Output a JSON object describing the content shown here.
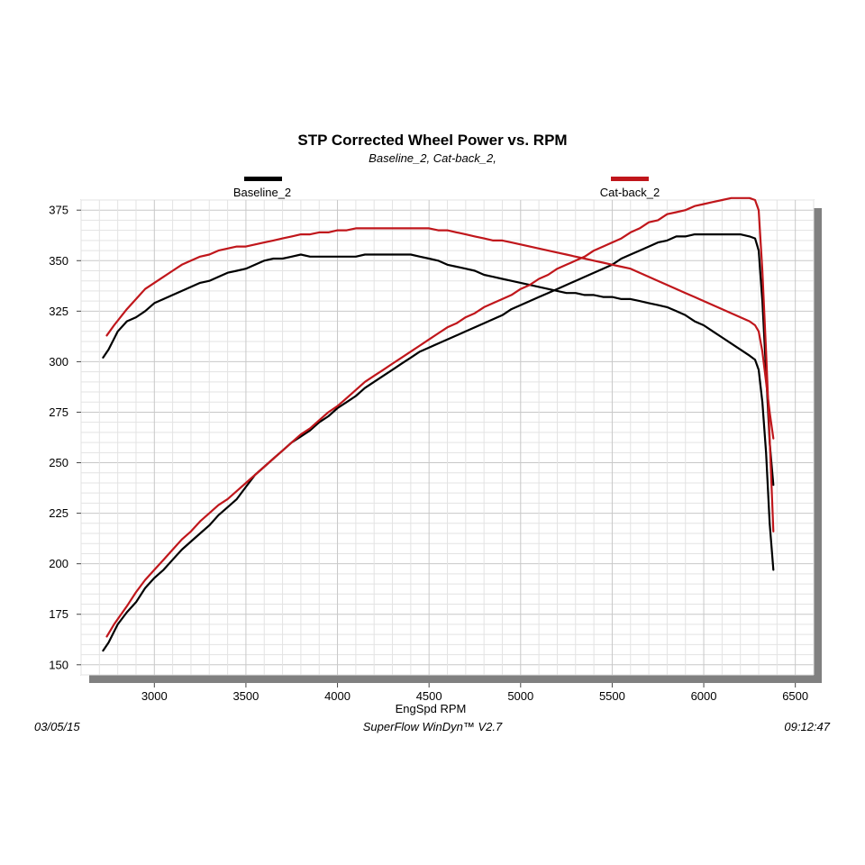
{
  "chart_data": {
    "type": "line",
    "title": "STP Corrected Wheel Power vs. RPM",
    "subtitle": "Baseline_2, Cat-back_2,",
    "xlabel": "EngSpd RPM",
    "ylabel": "",
    "xlim": [
      2600,
      6600
    ],
    "ylim": [
      145,
      380
    ],
    "x_ticks": [
      3000,
      3500,
      4000,
      4500,
      5000,
      5500,
      6000,
      6500
    ],
    "y_ticks": [
      150,
      175,
      200,
      225,
      250,
      275,
      300,
      325,
      350,
      375
    ],
    "grid": true,
    "legend_position": "top",
    "series": [
      {
        "name": "Baseline_2",
        "color": "#000000",
        "kind": "hp",
        "points": [
          [
            2720,
            157
          ],
          [
            2750,
            161
          ],
          [
            2800,
            170
          ],
          [
            2850,
            176
          ],
          [
            2900,
            181
          ],
          [
            2950,
            188
          ],
          [
            3000,
            193
          ],
          [
            3050,
            197
          ],
          [
            3100,
            202
          ],
          [
            3150,
            207
          ],
          [
            3200,
            211
          ],
          [
            3250,
            215
          ],
          [
            3300,
            219
          ],
          [
            3350,
            224
          ],
          [
            3400,
            228
          ],
          [
            3450,
            232
          ],
          [
            3500,
            238
          ],
          [
            3550,
            244
          ],
          [
            3600,
            248
          ],
          [
            3650,
            252
          ],
          [
            3700,
            256
          ],
          [
            3750,
            260
          ],
          [
            3800,
            263
          ],
          [
            3850,
            266
          ],
          [
            3900,
            270
          ],
          [
            3950,
            273
          ],
          [
            4000,
            277
          ],
          [
            4050,
            280
          ],
          [
            4100,
            283
          ],
          [
            4150,
            287
          ],
          [
            4200,
            290
          ],
          [
            4250,
            293
          ],
          [
            4300,
            296
          ],
          [
            4350,
            299
          ],
          [
            4400,
            302
          ],
          [
            4450,
            305
          ],
          [
            4500,
            307
          ],
          [
            4550,
            309
          ],
          [
            4600,
            311
          ],
          [
            4650,
            313
          ],
          [
            4700,
            315
          ],
          [
            4750,
            317
          ],
          [
            4800,
            319
          ],
          [
            4850,
            321
          ],
          [
            4900,
            323
          ],
          [
            4950,
            326
          ],
          [
            5000,
            328
          ],
          [
            5050,
            330
          ],
          [
            5100,
            332
          ],
          [
            5150,
            334
          ],
          [
            5200,
            336
          ],
          [
            5250,
            338
          ],
          [
            5300,
            340
          ],
          [
            5350,
            342
          ],
          [
            5400,
            344
          ],
          [
            5450,
            346
          ],
          [
            5500,
            348
          ],
          [
            5550,
            351
          ],
          [
            5600,
            353
          ],
          [
            5650,
            355
          ],
          [
            5700,
            357
          ],
          [
            5750,
            359
          ],
          [
            5800,
            360
          ],
          [
            5850,
            362
          ],
          [
            5900,
            362
          ],
          [
            5950,
            363
          ],
          [
            6000,
            363
          ],
          [
            6050,
            363
          ],
          [
            6100,
            363
          ],
          [
            6150,
            363
          ],
          [
            6200,
            363
          ],
          [
            6250,
            362
          ],
          [
            6280,
            361
          ],
          [
            6300,
            355
          ],
          [
            6320,
            330
          ],
          [
            6340,
            295
          ],
          [
            6360,
            260
          ],
          [
            6380,
            239
          ]
        ]
      },
      {
        "name": "Baseline_2",
        "color": "#000000",
        "kind": "torque",
        "points": [
          [
            2720,
            302
          ],
          [
            2750,
            306
          ],
          [
            2800,
            315
          ],
          [
            2850,
            320
          ],
          [
            2900,
            322
          ],
          [
            2950,
            325
          ],
          [
            3000,
            329
          ],
          [
            3050,
            331
          ],
          [
            3100,
            333
          ],
          [
            3150,
            335
          ],
          [
            3200,
            337
          ],
          [
            3250,
            339
          ],
          [
            3300,
            340
          ],
          [
            3350,
            342
          ],
          [
            3400,
            344
          ],
          [
            3450,
            345
          ],
          [
            3500,
            346
          ],
          [
            3550,
            348
          ],
          [
            3600,
            350
          ],
          [
            3650,
            351
          ],
          [
            3700,
            351
          ],
          [
            3750,
            352
          ],
          [
            3800,
            353
          ],
          [
            3850,
            352
          ],
          [
            3900,
            352
          ],
          [
            3950,
            352
          ],
          [
            4000,
            352
          ],
          [
            4050,
            352
          ],
          [
            4100,
            352
          ],
          [
            4150,
            353
          ],
          [
            4200,
            353
          ],
          [
            4250,
            353
          ],
          [
            4300,
            353
          ],
          [
            4350,
            353
          ],
          [
            4400,
            353
          ],
          [
            4450,
            352
          ],
          [
            4500,
            351
          ],
          [
            4550,
            350
          ],
          [
            4600,
            348
          ],
          [
            4650,
            347
          ],
          [
            4700,
            346
          ],
          [
            4750,
            345
          ],
          [
            4800,
            343
          ],
          [
            4850,
            342
          ],
          [
            4900,
            341
          ],
          [
            4950,
            340
          ],
          [
            5000,
            339
          ],
          [
            5050,
            338
          ],
          [
            5100,
            337
          ],
          [
            5150,
            336
          ],
          [
            5200,
            335
          ],
          [
            5250,
            334
          ],
          [
            5300,
            334
          ],
          [
            5350,
            333
          ],
          [
            5400,
            333
          ],
          [
            5450,
            332
          ],
          [
            5500,
            332
          ],
          [
            5550,
            331
          ],
          [
            5600,
            331
          ],
          [
            5650,
            330
          ],
          [
            5700,
            329
          ],
          [
            5750,
            328
          ],
          [
            5800,
            327
          ],
          [
            5850,
            325
          ],
          [
            5900,
            323
          ],
          [
            5950,
            320
          ],
          [
            6000,
            318
          ],
          [
            6050,
            315
          ],
          [
            6100,
            312
          ],
          [
            6150,
            309
          ],
          [
            6200,
            306
          ],
          [
            6250,
            303
          ],
          [
            6280,
            301
          ],
          [
            6300,
            296
          ],
          [
            6320,
            280
          ],
          [
            6340,
            255
          ],
          [
            6360,
            220
          ],
          [
            6380,
            197
          ]
        ]
      },
      {
        "name": "Cat-back_2",
        "color": "#c0161b",
        "kind": "hp",
        "points": [
          [
            2740,
            164
          ],
          [
            2780,
            170
          ],
          [
            2850,
            179
          ],
          [
            2900,
            186
          ],
          [
            2950,
            192
          ],
          [
            3000,
            197
          ],
          [
            3050,
            202
          ],
          [
            3100,
            207
          ],
          [
            3150,
            212
          ],
          [
            3200,
            216
          ],
          [
            3250,
            221
          ],
          [
            3300,
            225
          ],
          [
            3350,
            229
          ],
          [
            3400,
            232
          ],
          [
            3450,
            236
          ],
          [
            3500,
            240
          ],
          [
            3550,
            244
          ],
          [
            3600,
            248
          ],
          [
            3650,
            252
          ],
          [
            3700,
            256
          ],
          [
            3750,
            260
          ],
          [
            3800,
            264
          ],
          [
            3850,
            267
          ],
          [
            3900,
            271
          ],
          [
            3950,
            275
          ],
          [
            4000,
            278
          ],
          [
            4050,
            282
          ],
          [
            4100,
            286
          ],
          [
            4150,
            290
          ],
          [
            4200,
            293
          ],
          [
            4250,
            296
          ],
          [
            4300,
            299
          ],
          [
            4350,
            302
          ],
          [
            4400,
            305
          ],
          [
            4450,
            308
          ],
          [
            4500,
            311
          ],
          [
            4550,
            314
          ],
          [
            4600,
            317
          ],
          [
            4650,
            319
          ],
          [
            4700,
            322
          ],
          [
            4750,
            324
          ],
          [
            4800,
            327
          ],
          [
            4850,
            329
          ],
          [
            4900,
            331
          ],
          [
            4950,
            333
          ],
          [
            5000,
            336
          ],
          [
            5050,
            338
          ],
          [
            5100,
            341
          ],
          [
            5150,
            343
          ],
          [
            5200,
            346
          ],
          [
            5250,
            348
          ],
          [
            5300,
            350
          ],
          [
            5350,
            352
          ],
          [
            5400,
            355
          ],
          [
            5450,
            357
          ],
          [
            5500,
            359
          ],
          [
            5550,
            361
          ],
          [
            5600,
            364
          ],
          [
            5650,
            366
          ],
          [
            5700,
            369
          ],
          [
            5750,
            370
          ],
          [
            5800,
            373
          ],
          [
            5850,
            374
          ],
          [
            5900,
            375
          ],
          [
            5950,
            377
          ],
          [
            6000,
            378
          ],
          [
            6050,
            379
          ],
          [
            6100,
            380
          ],
          [
            6150,
            381
          ],
          [
            6200,
            381
          ],
          [
            6250,
            381
          ],
          [
            6280,
            380
          ],
          [
            6300,
            375
          ],
          [
            6320,
            345
          ],
          [
            6340,
            305
          ],
          [
            6360,
            262
          ],
          [
            6380,
            216
          ]
        ]
      },
      {
        "name": "Cat-back_2",
        "color": "#c0161b",
        "kind": "torque",
        "points": [
          [
            2740,
            313
          ],
          [
            2780,
            318
          ],
          [
            2850,
            326
          ],
          [
            2900,
            331
          ],
          [
            2950,
            336
          ],
          [
            3000,
            339
          ],
          [
            3050,
            342
          ],
          [
            3100,
            345
          ],
          [
            3150,
            348
          ],
          [
            3200,
            350
          ],
          [
            3250,
            352
          ],
          [
            3300,
            353
          ],
          [
            3350,
            355
          ],
          [
            3400,
            356
          ],
          [
            3450,
            357
          ],
          [
            3500,
            357
          ],
          [
            3550,
            358
          ],
          [
            3600,
            359
          ],
          [
            3650,
            360
          ],
          [
            3700,
            361
          ],
          [
            3750,
            362
          ],
          [
            3800,
            363
          ],
          [
            3850,
            363
          ],
          [
            3900,
            364
          ],
          [
            3950,
            364
          ],
          [
            4000,
            365
          ],
          [
            4050,
            365
          ],
          [
            4100,
            366
          ],
          [
            4150,
            366
          ],
          [
            4200,
            366
          ],
          [
            4250,
            366
          ],
          [
            4300,
            366
          ],
          [
            4350,
            366
          ],
          [
            4400,
            366
          ],
          [
            4450,
            366
          ],
          [
            4500,
            366
          ],
          [
            4550,
            365
          ],
          [
            4600,
            365
          ],
          [
            4650,
            364
          ],
          [
            4700,
            363
          ],
          [
            4750,
            362
          ],
          [
            4800,
            361
          ],
          [
            4850,
            360
          ],
          [
            4900,
            360
          ],
          [
            4950,
            359
          ],
          [
            5000,
            358
          ],
          [
            5050,
            357
          ],
          [
            5100,
            356
          ],
          [
            5150,
            355
          ],
          [
            5200,
            354
          ],
          [
            5250,
            353
          ],
          [
            5300,
            352
          ],
          [
            5350,
            351
          ],
          [
            5400,
            350
          ],
          [
            5450,
            349
          ],
          [
            5500,
            348
          ],
          [
            5550,
            347
          ],
          [
            5600,
            346
          ],
          [
            5650,
            344
          ],
          [
            5700,
            342
          ],
          [
            5750,
            340
          ],
          [
            5800,
            338
          ],
          [
            5850,
            336
          ],
          [
            5900,
            334
          ],
          [
            5950,
            332
          ],
          [
            6000,
            330
          ],
          [
            6050,
            328
          ],
          [
            6100,
            326
          ],
          [
            6150,
            324
          ],
          [
            6200,
            322
          ],
          [
            6250,
            320
          ],
          [
            6280,
            318
          ],
          [
            6300,
            315
          ],
          [
            6320,
            305
          ],
          [
            6340,
            290
          ],
          [
            6360,
            275
          ],
          [
            6380,
            262
          ]
        ]
      }
    ]
  },
  "legend": {
    "baseline_label": "Baseline_2",
    "catback_label": "Cat-back_2"
  },
  "footer": {
    "date": "03/05/15",
    "software": "SuperFlow WinDyn™ V2.7",
    "time": "09:12:47"
  }
}
